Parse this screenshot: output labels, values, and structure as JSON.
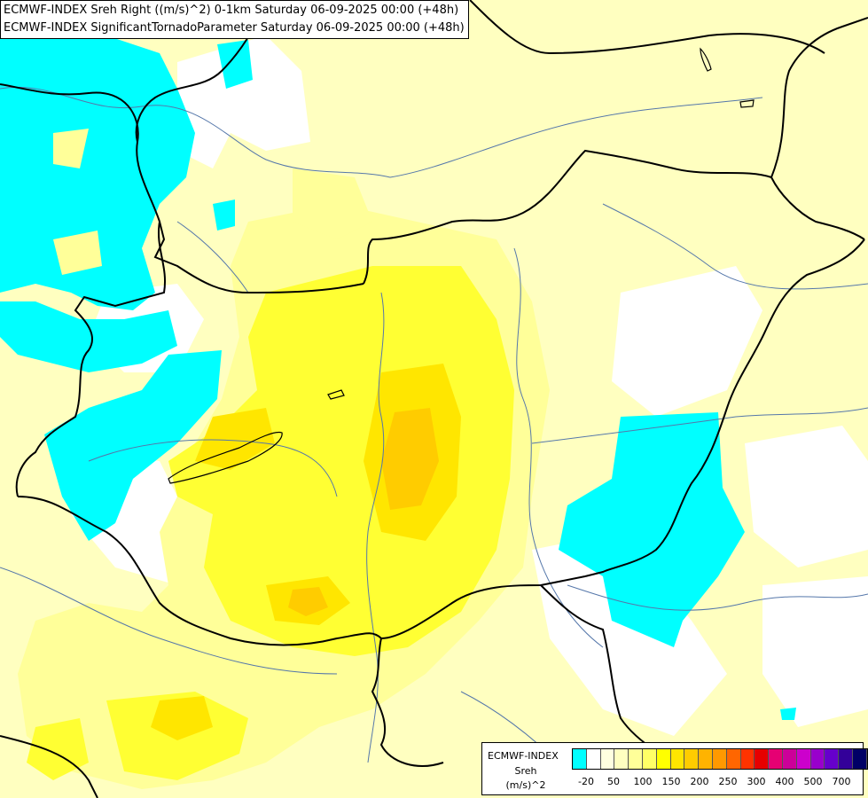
{
  "header": {
    "line1": "ECMWF-INDEX Sreh Right ((m/s)^2) 0-1km Saturday 06-09-2025 00:00 (+48h)",
    "line2": "ECMWF-INDEX SignificantTornadoParameter Saturday 06-09-2025 00:00 (+48h)"
  },
  "legend": {
    "model": "ECMWF-INDEX",
    "param": "Sreh",
    "unit": "(m/s)^2",
    "colors": [
      "#00ffff",
      "#ffffff",
      "#ffffe0",
      "#ffffc0",
      "#ffff99",
      "#ffff66",
      "#ffff00",
      "#ffe600",
      "#ffcc00",
      "#ffb300",
      "#ff9900",
      "#ff6600",
      "#ff3300",
      "#e60000",
      "#e60073",
      "#cc0099",
      "#cc00cc",
      "#9900cc",
      "#6600cc",
      "#330099",
      "#000066"
    ],
    "ticks": [
      "-20",
      "50",
      "100",
      "150",
      "200",
      "250",
      "300",
      "400",
      "500",
      "700"
    ]
  },
  "map": {
    "colors": {
      "cyan": "#00ffff",
      "white": "#ffffff",
      "pale": "#ffffc0",
      "light": "#ffff99",
      "yellow": "#ffff33",
      "gold": "#ffe600",
      "orange": "#ffcc00",
      "river": "#5577aa",
      "border": "#000000"
    }
  }
}
